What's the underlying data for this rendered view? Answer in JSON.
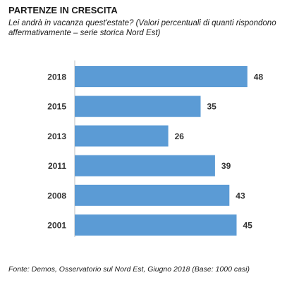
{
  "title": "PARTENZE IN CRESCITA",
  "subtitle": "Lei andrà in vacanza quest'estate? (Valori percentuali di quanti rispondono affermativamente – serie storica Nord Est)",
  "source": "Fonte: Demos, Osservatorio sul Nord Est, Giugno  2018 (Base: 1000 casi)",
  "chart_data": {
    "type": "bar",
    "orientation": "horizontal",
    "categories": [
      "2018",
      "2015",
      "2013",
      "2011",
      "2008",
      "2001"
    ],
    "values": [
      48,
      35,
      26,
      39,
      43,
      45
    ],
    "xlim": [
      0,
      60
    ],
    "grid": false,
    "legend": "none",
    "bar_color": "#5b9bd5"
  }
}
